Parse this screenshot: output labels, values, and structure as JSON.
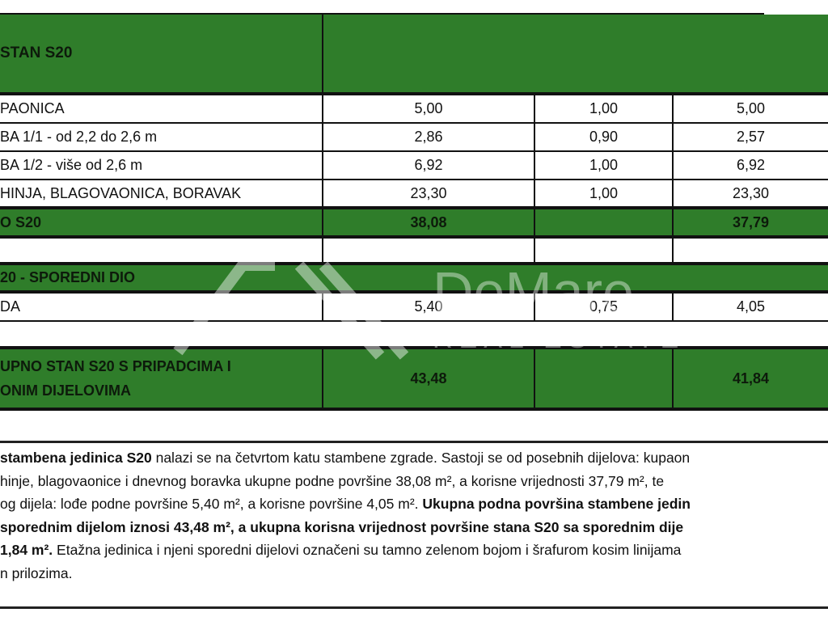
{
  "table": {
    "header": "STAN S20",
    "rows": [
      {
        "name": "PAONICA",
        "a": "5,00",
        "k": "1,00",
        "b": "5,00"
      },
      {
        "name": "BA 1/1  - od 2,2 do 2,6 m",
        "a": "2,86",
        "k": "0,90",
        "b": "2,57"
      },
      {
        "name": "BA 1/2 - više od 2,6 m",
        "a": "6,92",
        "k": "1,00",
        "b": "6,92"
      },
      {
        "name": "HINJA, BLAGOVAONICA, BORAVAK",
        "a": "23,30",
        "k": "1,00",
        "b": "23,30"
      }
    ],
    "subtotal": {
      "name": "O S20",
      "a": "38,08",
      "b": "37,79"
    },
    "secondary_header": "20 - SPOREDNI DIO",
    "secondary_rows": [
      {
        "name": "DA",
        "a": "5,40",
        "k": "0,75",
        "b": "4,05"
      }
    ],
    "total": {
      "line1": "UPNO STAN S20 S PRIPADCIMA I",
      "line2": "ONIM DIJELOVIMA",
      "a": "43,48",
      "b": "41,84"
    }
  },
  "watermark": {
    "brand": "DeMare",
    "tagline": "REAL ESTATE"
  },
  "paragraph": {
    "l1_bold": "stambena jedinica S20",
    "l1": " nalazi se na četvrtom katu stambene zgrade. Sastoji se od posebnih dijelova: kupaon",
    "l2": "hinje, blagovaonice i dnevnog boravka ukupne podne površine 38,08 m², a korisne vrijednosti 37,79 m², te",
    "l3": "og dijela: lođe podne površine 5,40 m², a korisne površine 4,05 m². ",
    "l3_bold": "Ukupna podna površina stambene jedin",
    "l4_bold": "sporednim dijelom iznosi 43,48 m², a ukupna korisna vrijednost površine stana S20 sa sporednim dije",
    "l5_bold": "1,84 m².",
    "l5": " Etažna jedinica i njeni sporedni dijelovi označeni su tamno zelenom bojom i šrafurom kosim linijama",
    "l6": "n prilozima."
  },
  "colors": {
    "green": "#2f7d2a"
  }
}
